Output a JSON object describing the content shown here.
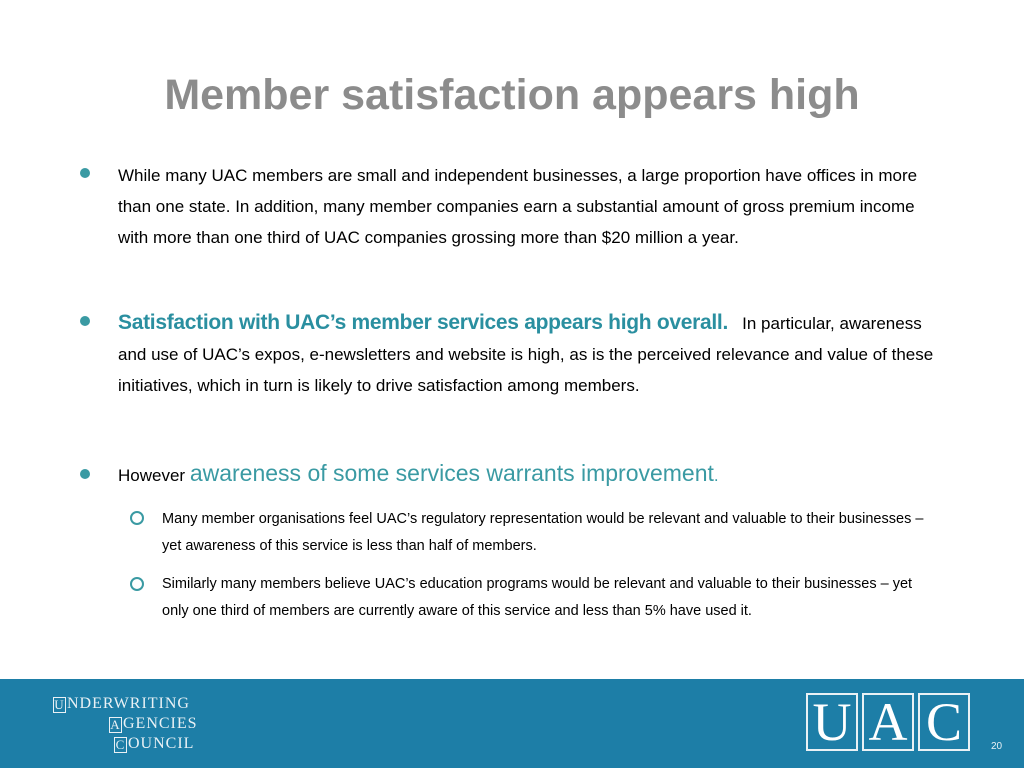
{
  "title": "Member satisfaction appears high",
  "bullets": [
    {
      "text": "While many UAC members are small and independent businesses, a large proportion have offices in more than one state. In addition, many member companies earn a substantial amount of gross premium income with more than one third of UAC companies grossing more than $20 million a year."
    },
    {
      "highlight": "Satisfaction with UAC’s member services appears high overall.",
      "text": "In particular, awareness and use of UAC’s expos, e-newsletters and website is high, as is the perceived relevance and value of these initiatives, which in turn is likely to drive satisfaction among members."
    },
    {
      "prefix": "However",
      "highlight": "awareness of some services warrants improvement",
      "suffix": ".",
      "subbullets": [
        "Many member organisations feel UAC’s regulatory representation would be relevant and valuable to their businesses – yet awareness of this service is less than half of members.",
        "Similarly many members believe UAC’s education programs would be relevant and valuable to their businesses – yet only one third of members are currently aware of this service and less than 5% have used it."
      ]
    }
  ],
  "footer": {
    "org_lines": [
      {
        "initial": "U",
        "rest": "NDERWRITING"
      },
      {
        "initial": "A",
        "rest": "GENCIES"
      },
      {
        "initial": "C",
        "rest": "OUNCIL"
      }
    ],
    "logo_letters": [
      "U",
      "A",
      "C"
    ],
    "page_number": "20",
    "background_color": "#1d7ea7"
  },
  "colors": {
    "title": "#8c8c8c",
    "accent": "#3a9aa3"
  }
}
